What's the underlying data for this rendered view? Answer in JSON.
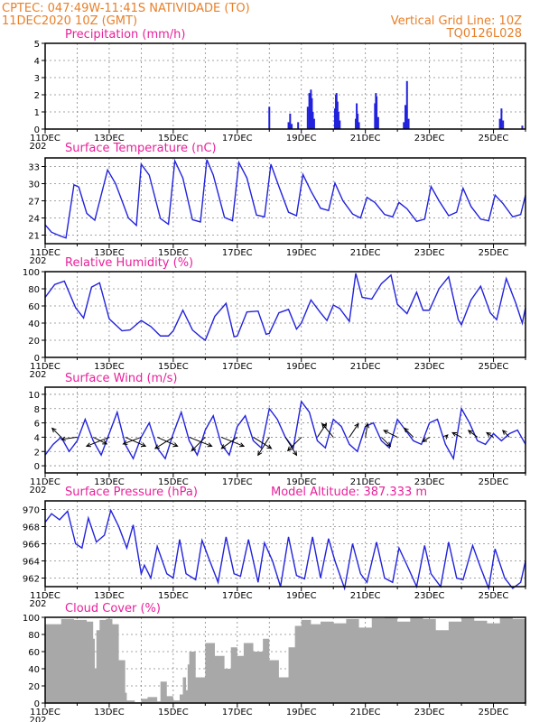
{
  "header": {
    "line1": "CPTEC:   047:49W-11:41S   NATIVIDADE (TO)",
    "line2": "11DEC2020 10Z (GMT)",
    "right1": "Vertical Grid Line: 10Z",
    "right2": "TQ0126L028"
  },
  "x_labels": [
    "11DEC",
    "13DEC",
    "15DEC",
    "17DEC",
    "19DEC",
    "21DEC",
    "23DEC",
    "25DEC"
  ],
  "x_year_stub": "202",
  "colors": {
    "header": "#e8802a",
    "title": "#e8209a",
    "series": "#2222dd",
    "cloud": "#a8a8a8"
  },
  "chart_data": [
    {
      "type": "bar",
      "title": "Precipitation (mm/h)",
      "ylim": [
        0,
        5
      ],
      "yticks": [
        0,
        1,
        2,
        3,
        4,
        5
      ],
      "x_unit": "days since 11DEC 10Z",
      "x": [
        7.0,
        7.6,
        7.65,
        7.7,
        7.9,
        8.2,
        8.25,
        8.28,
        8.3,
        8.33,
        8.36,
        8.4,
        9.05,
        9.08,
        9.1,
        9.13,
        9.16,
        9.2,
        9.7,
        9.73,
        9.76,
        9.8,
        10.3,
        10.33,
        10.35,
        10.4,
        11.2,
        11.25,
        11.3,
        11.35,
        14.2,
        14.25,
        14.3,
        14.9
      ],
      "values": [
        1.3,
        0.4,
        0.9,
        0.3,
        0.4,
        1.3,
        2.1,
        1.5,
        2.3,
        1.8,
        1.0,
        0.6,
        1.2,
        2.0,
        2.1,
        1.6,
        1.0,
        0.5,
        0.6,
        1.5,
        0.9,
        0.4,
        1.5,
        2.1,
        1.9,
        0.7,
        0.4,
        1.4,
        2.8,
        0.6,
        0.6,
        1.2,
        0.5,
        0.2
      ]
    },
    {
      "type": "line",
      "title": "Surface Temperature (nC)",
      "ylim": [
        19.5,
        34.5
      ],
      "yticks": [
        21,
        24,
        27,
        30,
        33
      ],
      "x": [
        0.0,
        0.2,
        0.45,
        0.65,
        0.9,
        1.05,
        1.3,
        1.55,
        1.95,
        2.2,
        2.6,
        2.85,
        3.0,
        3.25,
        3.6,
        3.85,
        4.05,
        4.3,
        4.6,
        4.85,
        5.05,
        5.25,
        5.6,
        5.85,
        6.05,
        6.3,
        6.6,
        6.85,
        7.05,
        7.3,
        7.6,
        7.85,
        8.05,
        8.3,
        8.6,
        8.85,
        9.05,
        9.3,
        9.6,
        9.85,
        10.05,
        10.3,
        10.6,
        10.85,
        11.05,
        11.3,
        11.6,
        11.85,
        12.05,
        12.3,
        12.6,
        12.85,
        13.05,
        13.3,
        13.6,
        13.85,
        14.05,
        14.3,
        14.6,
        14.85,
        15.0
      ],
      "values": [
        22.8,
        21.5,
        20.9,
        20.5,
        29.8,
        29.4,
        24.8,
        23.6,
        32.4,
        30.0,
        24.0,
        22.7,
        33.4,
        31.5,
        23.9,
        22.9,
        34.0,
        31.0,
        23.7,
        23.3,
        34.2,
        31.5,
        24.1,
        23.5,
        33.7,
        31.0,
        24.5,
        24.2,
        33.4,
        29.5,
        25.0,
        24.4,
        31.6,
        28.7,
        25.7,
        25.3,
        30.1,
        27.0,
        24.7,
        24.0,
        27.6,
        26.7,
        24.6,
        24.2,
        26.7,
        25.6,
        23.4,
        23.8,
        29.5,
        27.0,
        24.4,
        25.0,
        29.2,
        26.0,
        23.8,
        23.5,
        28.0,
        26.5,
        24.2,
        24.6,
        28.0
      ],
      "line_x": [
        0.0,
        0.2,
        0.45,
        0.65,
        0.9,
        1.05,
        1.3,
        1.55,
        1.95,
        2.2,
        2.6,
        2.85,
        3.0,
        3.25,
        3.6,
        3.85,
        4.05,
        4.3,
        4.6,
        4.85,
        5.05,
        5.25,
        5.6,
        5.85,
        6.05,
        6.3,
        6.6,
        6.85,
        7.05,
        7.3,
        7.6,
        7.85,
        8.05,
        8.3,
        8.6,
        8.85,
        9.05,
        9.3,
        9.6,
        9.85,
        10.05,
        10.3,
        10.6,
        10.85,
        11.05,
        11.3,
        11.6,
        11.85,
        12.05,
        12.3,
        12.6,
        12.85,
        13.05,
        13.3,
        13.6,
        13.85,
        14.05,
        14.3,
        14.6,
        14.85,
        15.0
      ]
    },
    {
      "type": "line",
      "title": "Relative Humidity (%)",
      "ylim": [
        0,
        100
      ],
      "yticks": [
        0,
        20,
        40,
        60,
        80,
        100
      ],
      "x": [
        0.0,
        0.3,
        0.6,
        0.95,
        1.2,
        1.45,
        1.7,
        2.0,
        2.4,
        2.65,
        3.0,
        3.3,
        3.6,
        3.85,
        4.0,
        4.3,
        4.6,
        4.85,
        5.0,
        5.3,
        5.65,
        5.9,
        6.0,
        6.3,
        6.65,
        6.9,
        7.0,
        7.3,
        7.6,
        7.85,
        8.0,
        8.3,
        8.6,
        8.8,
        9.0,
        9.2,
        9.5,
        9.7,
        9.9,
        10.2,
        10.5,
        10.8,
        11.0,
        11.3,
        11.6,
        11.8,
        12.0,
        12.3,
        12.6,
        12.9,
        13.0,
        13.3,
        13.6,
        13.9,
        14.1,
        14.4,
        14.7,
        14.9,
        15.0
      ],
      "values": [
        70.0,
        85.0,
        89.0,
        58.0,
        46.0,
        82.0,
        87.0,
        45.0,
        31.0,
        32.0,
        43.0,
        36.0,
        25.0,
        25.0,
        31.0,
        55.0,
        32.0,
        24.0,
        20.0,
        48.0,
        63.0,
        24.0,
        25.0,
        53.0,
        54.0,
        27.0,
        28.0,
        52.0,
        56.0,
        33.0,
        40.0,
        67.0,
        52.0,
        43.0,
        61.0,
        57.0,
        42.0,
        98.0,
        70.0,
        68.0,
        86.0,
        96.0,
        62.0,
        51.0,
        76.0,
        55.0,
        55.0,
        80.0,
        94.0,
        44.0,
        38.0,
        67.0,
        83.0,
        52.0,
        44.0,
        92.0,
        63.0,
        40.0,
        58.0
      ]
    },
    {
      "type": "line",
      "title": "Surface Wind (m/s)",
      "ylim": [
        -1,
        11
      ],
      "yticks": [
        0,
        2,
        4,
        6,
        8,
        10
      ],
      "x": [
        0.0,
        0.25,
        0.5,
        0.75,
        1.0,
        1.25,
        1.5,
        1.75,
        2.0,
        2.25,
        2.5,
        2.75,
        3.0,
        3.25,
        3.5,
        3.75,
        4.0,
        4.25,
        4.5,
        4.75,
        5.0,
        5.25,
        5.5,
        5.75,
        6.0,
        6.25,
        6.5,
        6.75,
        7.0,
        7.25,
        7.5,
        7.75,
        8.0,
        8.25,
        8.5,
        8.75,
        9.0,
        9.25,
        9.5,
        9.75,
        10.0,
        10.25,
        10.5,
        10.75,
        11.0,
        11.25,
        11.5,
        11.75,
        12.0,
        12.25,
        12.5,
        12.75,
        13.0,
        13.25,
        13.5,
        13.75,
        14.0,
        14.25,
        14.5,
        14.75,
        15.0
      ],
      "values": [
        1.5,
        3.0,
        4.0,
        2.0,
        3.5,
        6.5,
        3.5,
        1.5,
        4.5,
        7.5,
        3.0,
        1.0,
        4.0,
        6.0,
        2.5,
        1.0,
        4.5,
        7.5,
        3.5,
        1.5,
        5.0,
        7.0,
        3.0,
        1.5,
        5.5,
        7.0,
        3.5,
        2.5,
        8.0,
        6.5,
        4.0,
        2.5,
        9.0,
        7.5,
        3.5,
        2.5,
        6.5,
        5.5,
        3.0,
        2.0,
        5.5,
        6.0,
        3.5,
        2.5,
        6.5,
        5.0,
        3.5,
        3.0,
        6.0,
        6.5,
        3.0,
        1.0,
        8.0,
        6.0,
        3.5,
        3.0,
        4.5,
        3.5,
        4.5,
        5.0,
        3.0
      ],
      "arrows": [
        {
          "x": 0.5,
          "u": -2.0,
          "v": 2.0
        },
        {
          "x": 1.0,
          "u": -3.5,
          "v": -0.5
        },
        {
          "x": 1.5,
          "u": 3.0,
          "v": -1.5
        },
        {
          "x": 2.0,
          "u": -5.0,
          "v": -2.0
        },
        {
          "x": 2.5,
          "u": 4.5,
          "v": -2.0
        },
        {
          "x": 3.0,
          "u": -4.0,
          "v": -1.5
        },
        {
          "x": 3.5,
          "u": 4.5,
          "v": -2.0
        },
        {
          "x": 4.0,
          "u": -4.0,
          "v": -2.5
        },
        {
          "x": 4.5,
          "u": 5.0,
          "v": -2.0
        },
        {
          "x": 5.0,
          "u": -3.0,
          "v": -3.0
        },
        {
          "x": 5.5,
          "u": 5.0,
          "v": -2.0
        },
        {
          "x": 6.0,
          "u": -3.5,
          "v": -2.5
        },
        {
          "x": 6.5,
          "u": 4.0,
          "v": -2.5
        },
        {
          "x": 7.0,
          "u": -2.5,
          "v": -4.0
        },
        {
          "x": 7.5,
          "u": 2.5,
          "v": -4.0
        },
        {
          "x": 8.0,
          "u": -3.0,
          "v": -3.0
        },
        {
          "x": 8.5,
          "u": 2.0,
          "v": 3.0
        },
        {
          "x": 9.0,
          "u": -2.5,
          "v": 3.0
        },
        {
          "x": 9.5,
          "u": 2.0,
          "v": 3.0
        },
        {
          "x": 10.0,
          "u": 0.5,
          "v": 3.0
        },
        {
          "x": 10.5,
          "u": 2.0,
          "v": -2.0
        },
        {
          "x": 11.0,
          "u": -3.0,
          "v": 1.5
        },
        {
          "x": 11.5,
          "u": -2.0,
          "v": 2.0
        },
        {
          "x": 12.0,
          "u": -1.5,
          "v": -1.0
        },
        {
          "x": 12.5,
          "u": 0.5,
          "v": 0.5
        },
        {
          "x": 13.0,
          "u": -2.0,
          "v": 1.0
        },
        {
          "x": 13.5,
          "u": -2.0,
          "v": 1.5
        },
        {
          "x": 14.0,
          "u": -1.5,
          "v": 1.0
        },
        {
          "x": 14.5,
          "u": -1.5,
          "v": 1.5
        }
      ]
    },
    {
      "type": "line",
      "title": "Surface Pressure (hPa)",
      "subtitle": "Model Altitude: 387.333 m",
      "ylim": [
        961,
        971
      ],
      "yticks": [
        962,
        964,
        966,
        968,
        970
      ],
      "x": [
        0.0,
        0.2,
        0.45,
        0.7,
        0.95,
        1.15,
        1.35,
        1.6,
        1.85,
        2.05,
        2.3,
        2.55,
        2.75,
        3.0,
        3.1,
        3.3,
        3.5,
        3.8,
        4.0,
        4.2,
        4.4,
        4.7,
        4.9,
        5.1,
        5.4,
        5.65,
        5.9,
        6.1,
        6.35,
        6.65,
        6.85,
        7.1,
        7.35,
        7.6,
        7.85,
        8.1,
        8.35,
        8.6,
        8.85,
        9.05,
        9.35,
        9.6,
        9.85,
        10.05,
        10.35,
        10.6,
        10.85,
        11.05,
        11.3,
        11.6,
        11.85,
        12.05,
        12.35,
        12.6,
        12.85,
        13.05,
        13.35,
        13.6,
        13.85,
        14.05,
        14.35,
        14.6,
        14.85,
        15.0
      ],
      "values": [
        968.5,
        969.5,
        968.8,
        969.8,
        966.0,
        965.5,
        969.0,
        966.2,
        967.0,
        969.9,
        968.0,
        965.5,
        968.2,
        962.5,
        963.5,
        962.0,
        965.7,
        962.5,
        962.0,
        966.5,
        962.5,
        961.8,
        966.4,
        964.4,
        961.5,
        966.8,
        962.5,
        962.2,
        966.5,
        961.5,
        966.1,
        964.0,
        961.0,
        966.8,
        962.3,
        961.9,
        966.8,
        962.0,
        966.6,
        964.0,
        960.8,
        966.0,
        962.5,
        961.5,
        966.2,
        962.0,
        961.5,
        965.5,
        963.5,
        961.0,
        965.8,
        962.5,
        961.0,
        966.2,
        962.0,
        961.8,
        965.8,
        963.2,
        960.8,
        965.4,
        962.0,
        960.8,
        961.5,
        964.0
      ]
    },
    {
      "type": "area",
      "title": "Cloud Cover (%)",
      "ylim": [
        0,
        100
      ],
      "yticks": [
        0,
        20,
        40,
        60,
        80,
        100
      ],
      "x": [
        0.0,
        0.5,
        0.9,
        1.3,
        1.5,
        1.55,
        1.6,
        1.7,
        1.9,
        2.1,
        2.3,
        2.5,
        2.55,
        2.8,
        3.0,
        3.2,
        3.5,
        3.6,
        3.8,
        4.0,
        4.2,
        4.3,
        4.4,
        4.45,
        4.5,
        4.7,
        5.0,
        5.3,
        5.6,
        5.8,
        6.0,
        6.2,
        6.5,
        6.8,
        7.0,
        7.3,
        7.6,
        7.8,
        8.0,
        8.3,
        8.6,
        9.0,
        9.4,
        9.8,
        10.2,
        10.6,
        11.0,
        11.4,
        11.8,
        12.2,
        12.6,
        13.0,
        13.4,
        13.8,
        14.2,
        14.6,
        15.0
      ],
      "values": [
        92.0,
        98.0,
        97.0,
        95.0,
        75.0,
        40.0,
        85.0,
        97.0,
        98.0,
        92.0,
        50.0,
        12.0,
        3.0,
        1.0,
        5.0,
        7.0,
        2.0,
        25.0,
        8.0,
        3.0,
        10.0,
        30.0,
        15.0,
        45.0,
        60.0,
        30.0,
        70.0,
        55.0,
        40.0,
        65.0,
        55.0,
        70.0,
        60.0,
        75.0,
        50.0,
        30.0,
        65.0,
        90.0,
        97.0,
        92.0,
        95.0,
        93.0,
        98.0,
        88.0,
        99.0,
        100.0,
        95.0,
        100.0,
        98.0,
        85.0,
        95.0,
        100.0,
        96.0,
        93.0,
        100.0,
        98.0,
        97.0
      ]
    }
  ]
}
